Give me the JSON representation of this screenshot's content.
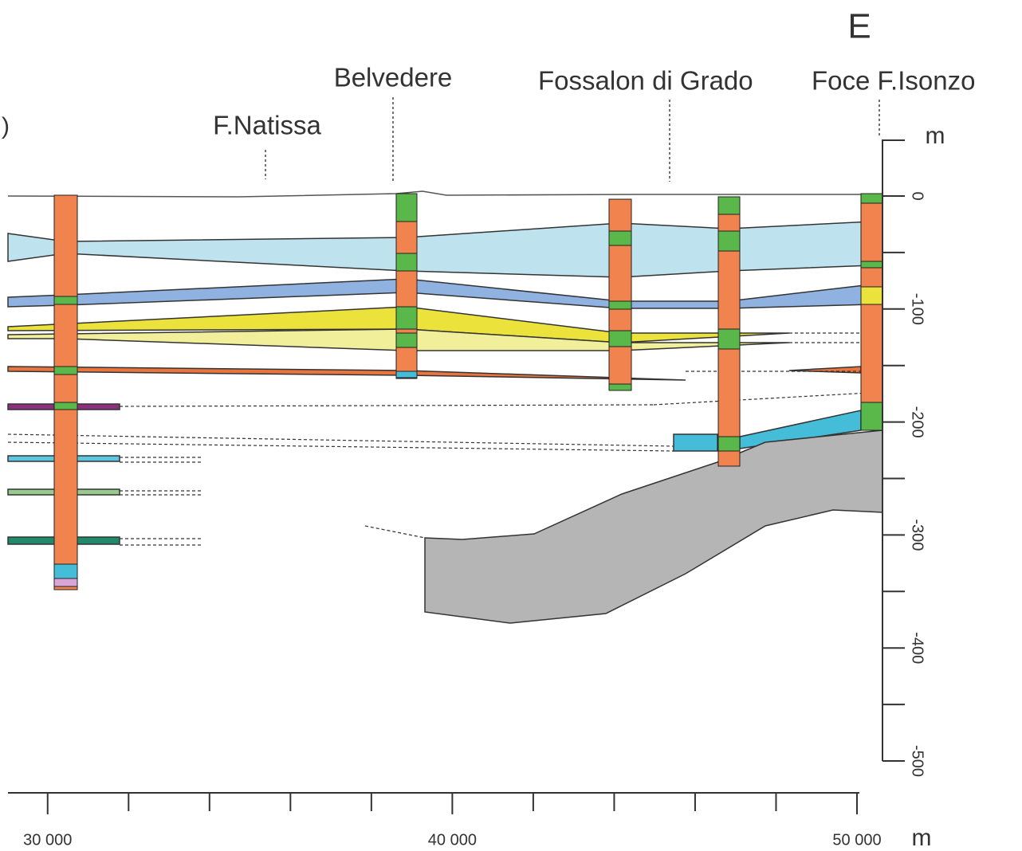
{
  "labels": {
    "direction": "E",
    "edge_fragment": ")",
    "stations": [
      "F.Natissa",
      "Belvedere",
      "Fossalon di Grado",
      "Foce F.Isonzo"
    ]
  },
  "depth_axis": {
    "unit": "m",
    "ylim": [
      -500,
      0
    ],
    "yticks": [
      0,
      -100,
      -200,
      -300,
      -400,
      -500
    ],
    "minor_yticks": [
      -50,
      -150,
      -250,
      -350,
      -450
    ]
  },
  "distance_axis": {
    "unit": "m",
    "xlim": [
      29000,
      50000
    ],
    "xticks": [
      {
        "value": 30000,
        "label": "30 000"
      },
      {
        "value": 40000,
        "label": "40 000"
      },
      {
        "value": 50000,
        "label": "50 000"
      }
    ],
    "minor_xticks": [
      32000,
      34000,
      36000,
      38000,
      42000,
      44000,
      46000,
      48000
    ]
  }
}
